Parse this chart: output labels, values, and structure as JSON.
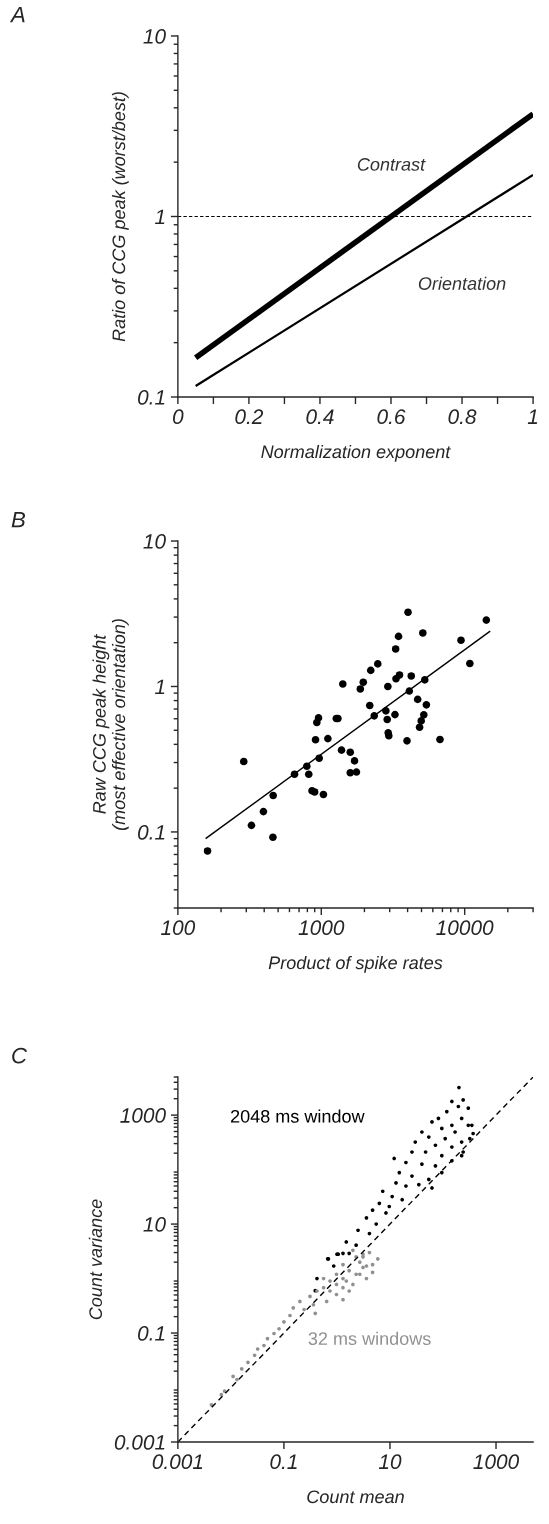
{
  "chart_data": [
    {
      "type": "line",
      "title": "A",
      "xlabel": "Normalization exponent",
      "ylabel": "Ratio of CCG peak (worst/best)",
      "log": "y",
      "xlim": [
        0,
        1
      ],
      "ylim": [
        0.1,
        10
      ],
      "xticks": [
        0,
        {
          "value": 0.1,
          "label": null
        },
        0.2,
        {
          "value": 0.3,
          "label": null
        },
        0.4,
        {
          "value": 0.5,
          "label": null
        },
        0.6,
        {
          "value": 0.7,
          "label": null
        },
        0.8,
        {
          "value": 0.9,
          "label": null
        },
        1
      ],
      "yticks": [
        0.1,
        1,
        10
      ],
      "grid": false,
      "legend": false,
      "ref_lines": [
        {
          "axis": "y",
          "value": 1,
          "color": "#000000",
          "line_style": "dashed"
        }
      ],
      "series": [
        {
          "name": "Contrast",
          "color": "#000000",
          "x": [
            0.05,
            1
          ],
          "values": [
            0.165,
            3.7
          ]
        },
        {
          "name": "Orientation",
          "color": "#000000",
          "x": [
            0.05,
            1
          ],
          "values": [
            0.115,
            1.7
          ]
        }
      ]
    },
    {
      "type": "scatter",
      "title": "B",
      "xlabel": "Product of spike rates",
      "ylabel": "Raw CCG peak height\n(most effective orientation)",
      "log": "xy",
      "xlim": [
        100,
        30000
      ],
      "ylim": [
        0.03,
        10
      ],
      "xticks": [
        100,
        1000,
        10000
      ],
      "yticks": [
        0.1,
        1,
        10
      ],
      "grid": false,
      "legend": false,
      "series": [
        {
          "marker": "circle",
          "color": "#000000",
          "x": [
            161,
            288,
            326,
            395,
            460,
            462,
            651,
            793,
            818,
            862,
            899,
            1035,
            912,
            931,
            957,
            967,
            1112,
            1273,
            1307,
            1384,
            1413,
            1593,
            1593,
            1706,
            1759,
            1872,
            1963,
            2178,
            2213,
            2341,
            2478,
            2823,
            2884,
            2913,
            2929,
            2958,
            3266,
            3302,
            3320,
            3459,
            3513,
            3963,
            4027,
            4111,
            4241,
            4702,
            4849,
            4977,
            5108,
            5188,
            5270,
            5409,
            6728,
            9431,
            10870,
            14160
          ],
          "values": [
            0.074,
            0.305,
            0.111,
            0.138,
            0.092,
            0.178,
            0.249,
            0.283,
            0.249,
            0.192,
            0.188,
            0.181,
            0.43,
            0.565,
            0.608,
            0.321,
            0.438,
            0.602,
            0.602,
            0.365,
            1.04,
            0.353,
            0.255,
            0.308,
            0.258,
            0.96,
            1.07,
            0.74,
            1.29,
            0.628,
            1.43,
            0.68,
            0.593,
            1.0,
            0.48,
            0.458,
            0.641,
            1.81,
            1.13,
            2.21,
            1.2,
            0.423,
            3.24,
            0.93,
            1.18,
            0.815,
            0.525,
            0.58,
            2.33,
            0.638,
            1.11,
            0.748,
            0.432,
            2.08,
            1.44,
            2.86
          ]
        },
        {
          "type": "line",
          "color": "#000000",
          "x": [
            156,
            15070
          ],
          "values": [
            0.09,
            2.4
          ]
        }
      ]
    },
    {
      "type": "scatter",
      "title": "C",
      "xlabel": "Count mean",
      "ylabel": "Count variance",
      "log": "xy",
      "xlim": [
        0.001,
        5000
      ],
      "ylim": [
        0.001,
        5000
      ],
      "xticks": [
        0.001,
        0.1,
        10,
        1000
      ],
      "yticks": [
        0.001,
        0.1,
        10,
        1000
      ],
      "grid": false,
      "legend": false,
      "series": [
        {
          "name": "2048 ms window",
          "marker": "circle",
          "color": "#000000",
          "x": [
            200,
            240,
            147,
            300,
            195,
            118,
            82,
            225,
            147,
            300,
            62,
            95,
            40,
            169,
            320,
            54,
            110,
            225,
            30,
            72,
            147,
            26,
            47,
            95,
            225,
            12,
            20,
            40,
            72,
            147,
            15,
            26,
            54,
            95,
            13,
            20,
            35,
            62,
            7.3,
            11,
            17,
            6.3,
            9.7,
            4.7,
            8.4,
            3.6,
            5.5,
            2.5,
            4.1,
            1.5,
            2.3,
            1.0,
            0.69,
            1.3,
            370,
            240,
            350,
            0.67,
            0.42,
            0.87,
            1.06,
            1.7,
            0.39
          ],
          "values": [
            3200,
            1900,
            1780,
            1340,
            1440,
            1160,
            870,
            870,
            650,
            650,
            750,
            570,
            490,
            490,
            370,
            395,
            370,
            320,
            320,
            280,
            260,
            210,
            210,
            180,
            180,
            160,
            135,
            126,
            117,
            145,
            88,
            76,
            66,
            88,
            57,
            50,
            53,
            46,
            40,
            32,
            28,
            24,
            21,
            18,
            16,
            13,
            10,
            7.7,
            6.7,
            4.7,
            4.1,
            2.8,
            2.3,
            2.9,
            460,
            210,
            650,
            2.3,
            1.0,
            1.7,
            2.8,
            2.9,
            0.6
          ]
        },
        {
          "name": "32 ms windows",
          "marker": "circle",
          "color": "#909090",
          "x": [
            5.9,
            4.1,
            3.1,
            2.3,
            1.7,
            1.3,
            0.98,
            3.6,
            2.0,
            1.3,
            0.74,
            0.56,
            0.98,
            1.7,
            2.7,
            0.74,
            0.42,
            0.31,
            0.2,
            0.36,
            0.24,
            0.39,
            0.15,
            0.13,
            0.1,
            0.081,
            0.065,
            0.049,
            0.042,
            0.032,
            0.028,
            0.021,
            0.016,
            0.011,
            0.013,
            0.0076,
            0.0066,
            0.0043,
            1.3,
            2.7,
            3.1,
            2.0,
            0.98,
            0.64,
            1.3,
            4.7,
            3.6,
            1.5,
            0.56,
            4.7,
            3.1,
            2.3
          ],
          "values": [
            2.3,
            3.0,
            1.6,
            2.5,
            1.4,
            1.8,
            1.2,
            1.0,
            0.78,
            0.68,
            0.9,
            0.68,
            0.51,
            0.59,
            1.2,
            0.59,
            0.59,
            0.47,
            0.38,
            0.33,
            0.27,
            0.23,
            0.29,
            0.21,
            0.16,
            0.12,
            0.098,
            0.079,
            0.059,
            0.051,
            0.039,
            0.029,
            0.022,
            0.016,
            0.014,
            0.0086,
            0.0074,
            0.0048,
            1.0,
            2.0,
            2.8,
            3.3,
            0.78,
            0.38,
            0.41,
            1.3,
            1.7,
            0.9,
            1.0,
            1.8,
            2.5,
            1.2
          ]
        },
        {
          "type": "line",
          "line_style": "dashed",
          "color": "#000000",
          "x": [
            0.001,
            5000
          ],
          "values": [
            0.001,
            5000
          ]
        }
      ]
    }
  ]
}
